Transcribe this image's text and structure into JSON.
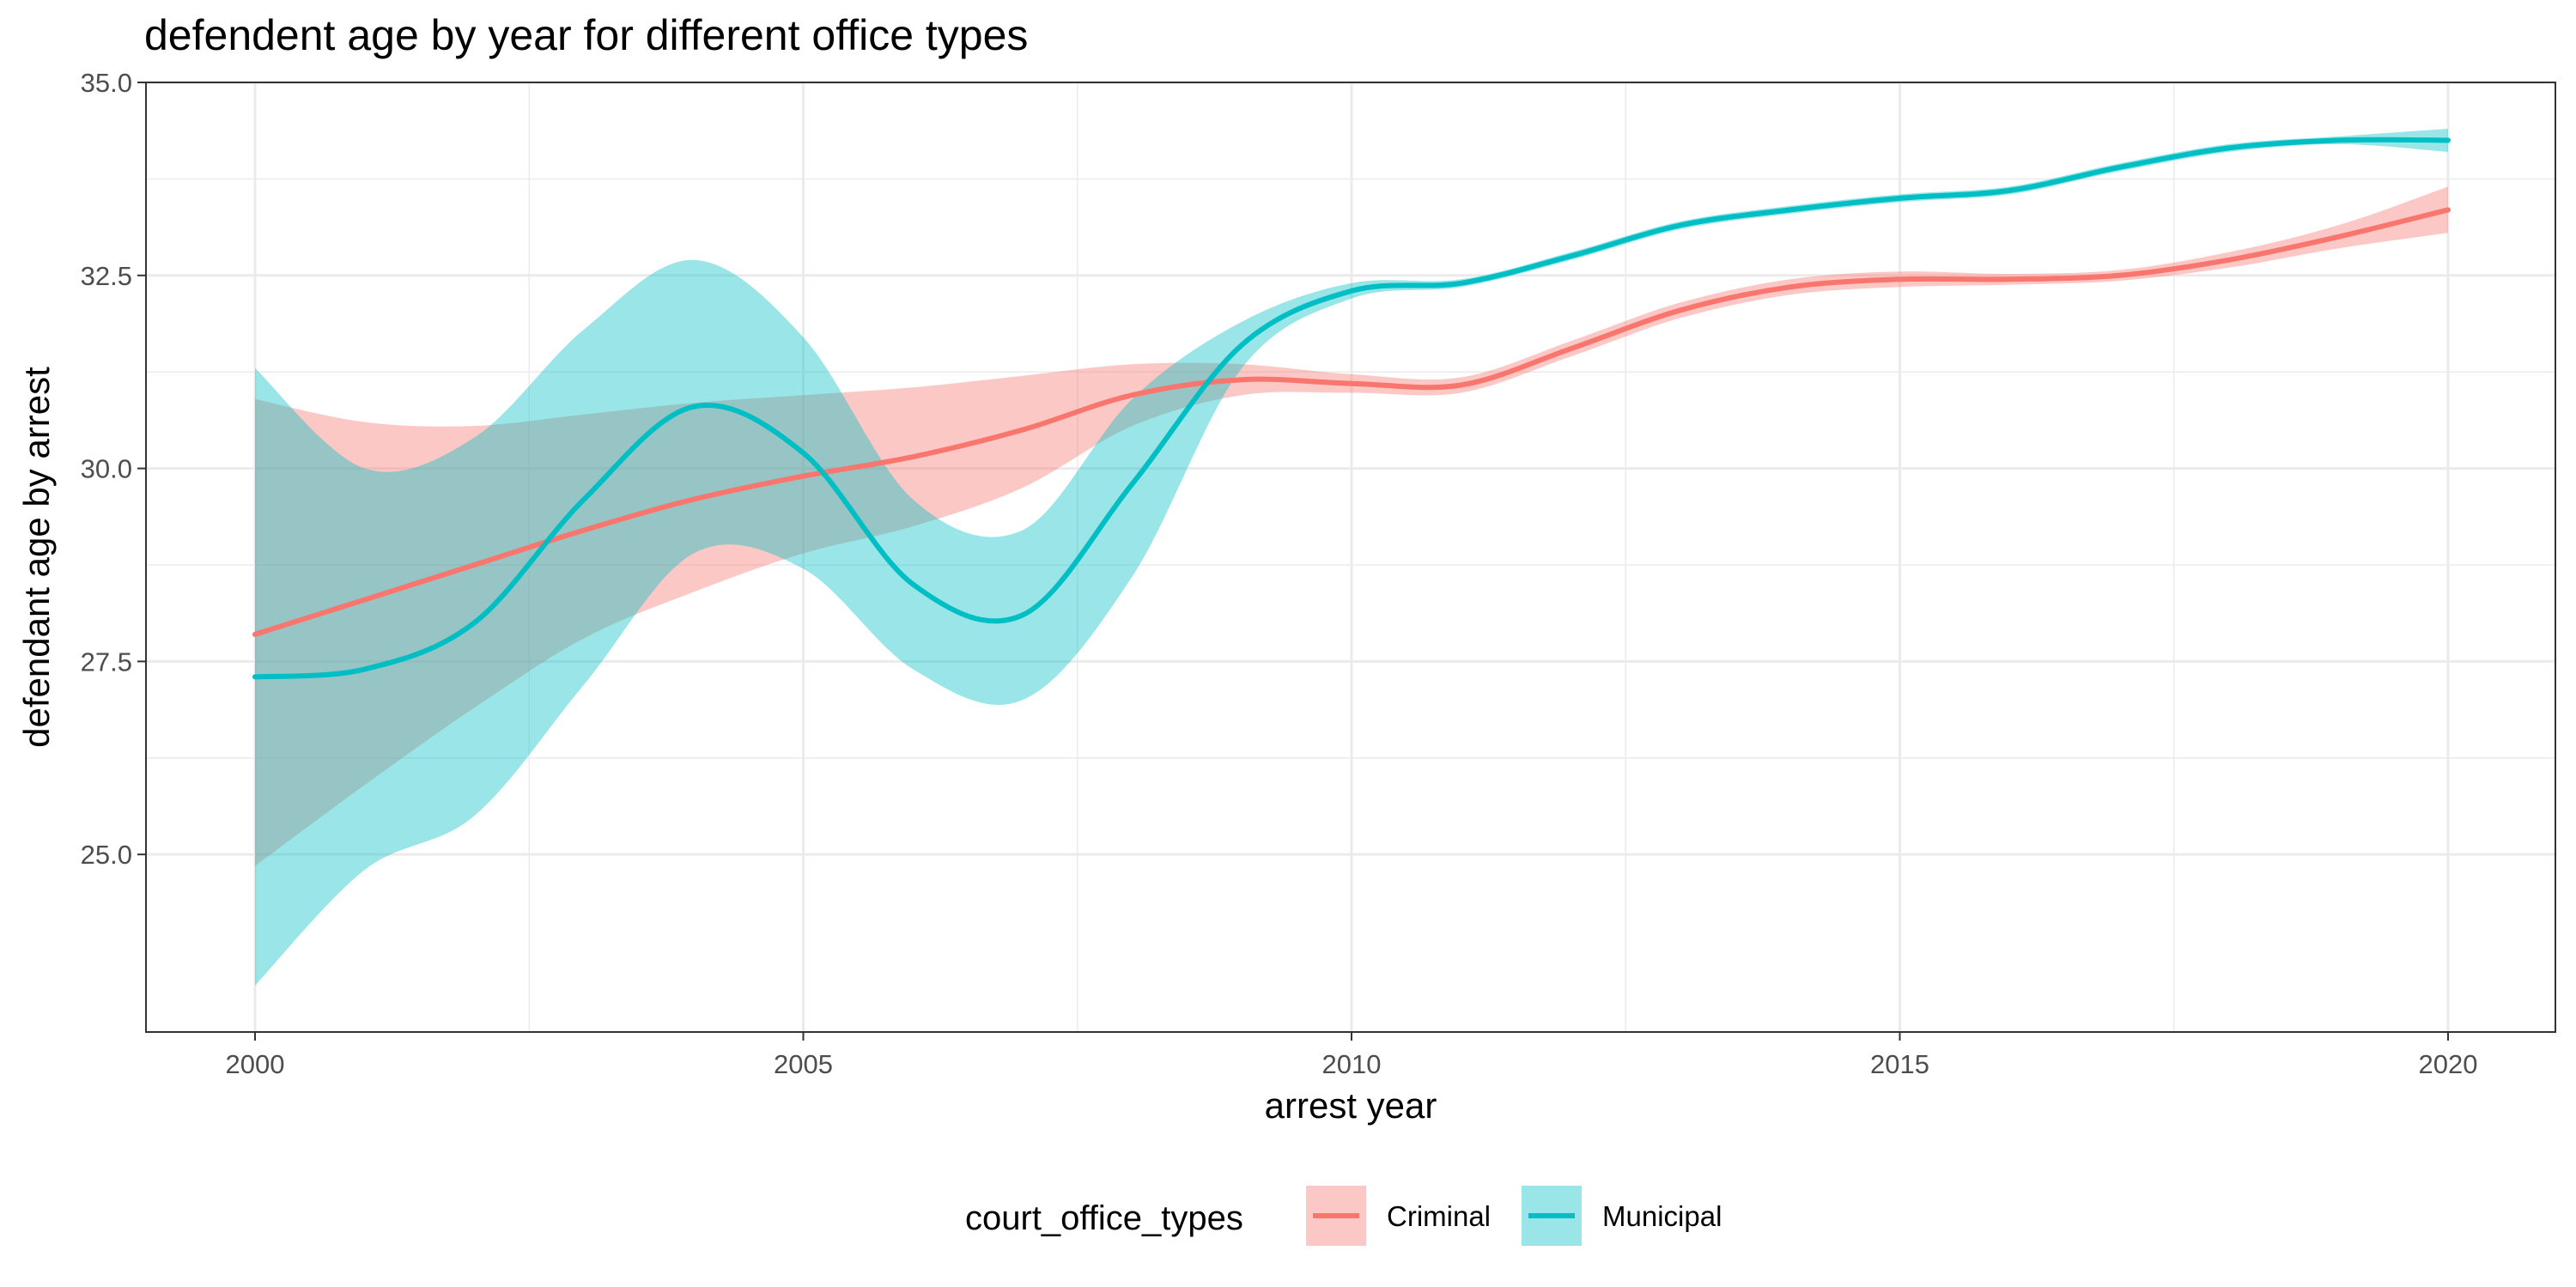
{
  "chart_data": {
    "type": "line",
    "title": "defendent age by year for different office types",
    "xlabel": "arrest year",
    "ylabel": "defendant age by arrest",
    "xlim": [
      1999,
      2021
    ],
    "ylim": [
      22.7,
      35.0
    ],
    "x_ticks": [
      2000,
      2005,
      2010,
      2015,
      2020
    ],
    "x_tick_labels": [
      "2000",
      "2005",
      "2010",
      "2015",
      "2020"
    ],
    "y_ticks": [
      25.0,
      27.5,
      30.0,
      32.5,
      35.0
    ],
    "y_tick_labels": [
      "25.0",
      "27.5",
      "30.0",
      "32.5",
      "35.0"
    ],
    "grid": true,
    "confidence_bands": true,
    "legend": {
      "title": "court_office_types",
      "position": "bottom",
      "entries": [
        "Criminal",
        "Municipal"
      ]
    },
    "x": [
      2000,
      2001,
      2002,
      2003,
      2004,
      2005,
      2006,
      2007,
      2008,
      2009,
      2010,
      2011,
      2012,
      2013,
      2014,
      2015,
      2016,
      2017,
      2018,
      2019,
      2020
    ],
    "series": [
      {
        "name": "Criminal",
        "color": "#F8766D",
        "values": [
          27.85,
          28.3,
          28.75,
          29.2,
          29.6,
          29.9,
          30.15,
          30.5,
          30.95,
          31.15,
          31.1,
          31.08,
          31.55,
          32.05,
          32.35,
          32.45,
          32.45,
          32.5,
          32.7,
          33.0,
          33.35
        ],
        "lower": [
          24.85,
          25.9,
          26.9,
          27.8,
          28.4,
          28.9,
          29.25,
          29.75,
          30.55,
          30.95,
          30.98,
          30.98,
          31.45,
          31.95,
          32.25,
          32.35,
          32.38,
          32.43,
          32.6,
          32.85,
          33.05
        ],
        "upper": [
          30.9,
          30.6,
          30.55,
          30.7,
          30.85,
          30.95,
          31.05,
          31.2,
          31.35,
          31.35,
          31.22,
          31.18,
          31.65,
          32.15,
          32.45,
          32.55,
          32.52,
          32.57,
          32.8,
          33.15,
          33.65
        ]
      },
      {
        "name": "Municipal",
        "color": "#00BFC4",
        "values": [
          27.3,
          27.4,
          28.0,
          29.6,
          30.8,
          30.2,
          28.5,
          28.1,
          29.8,
          31.6,
          32.3,
          32.4,
          32.75,
          33.15,
          33.35,
          33.5,
          33.6,
          33.9,
          34.15,
          34.25,
          34.25
        ],
        "lower": [
          23.3,
          24.8,
          25.5,
          27.2,
          28.9,
          28.7,
          27.4,
          27.0,
          28.6,
          31.3,
          32.2,
          32.35,
          32.7,
          33.1,
          33.3,
          33.45,
          33.55,
          33.85,
          34.1,
          34.2,
          34.1
        ],
        "upper": [
          31.3,
          30.0,
          30.4,
          31.8,
          32.7,
          31.7,
          29.6,
          29.2,
          30.9,
          31.9,
          32.4,
          32.45,
          32.8,
          33.2,
          33.4,
          33.55,
          33.65,
          33.95,
          34.2,
          34.3,
          34.4
        ]
      }
    ]
  }
}
